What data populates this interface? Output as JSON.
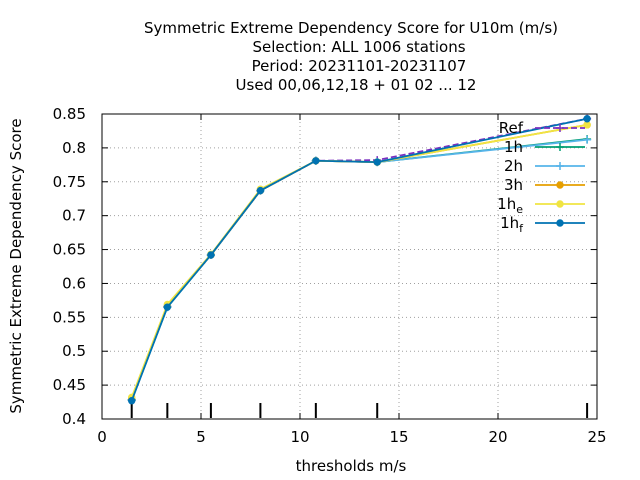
{
  "chart_data": {
    "type": "line",
    "title": [
      "Symmetric Extreme Dependency Score  for U10m (m/s)",
      "Selection: ALL   1006 stations",
      "Period: 20231101-20231107",
      "Used  00,06,12,18 + 01 02 ... 12"
    ],
    "xlabel": "thresholds m/s",
    "ylabel": "Symmetric Extreme Dependency Score",
    "xlim": [
      0,
      25
    ],
    "ylim": [
      0.4,
      0.85
    ],
    "xticks": [
      "0",
      "5",
      "10",
      "15",
      "20",
      "25"
    ],
    "yticks": [
      "0.4",
      "0.45",
      "0.5",
      "0.55",
      "0.6",
      "0.65",
      "0.7",
      "0.75",
      "0.8",
      "0.85"
    ],
    "grid": true,
    "legend_position": "top-right",
    "threshold_marks": [
      1.5,
      3.3,
      5.5,
      8.0,
      10.8,
      13.9,
      24.5
    ],
    "x": [
      1.5,
      3.3,
      5.5,
      8.0,
      10.8,
      13.9,
      24.5
    ],
    "series": [
      {
        "name": "Ref",
        "base": "Ref",
        "sub": "",
        "color": "#7b2fbf",
        "dashed": true,
        "marker": "plus",
        "values": [
          0.428,
          0.566,
          0.642,
          0.737,
          0.781,
          0.782,
          0.843
        ]
      },
      {
        "name": "1h",
        "base": "1h",
        "sub": "",
        "color": "#009e73",
        "dashed": false,
        "marker": "plus",
        "values": [
          0.428,
          0.565,
          0.642,
          0.737,
          0.781,
          0.779,
          0.813
        ]
      },
      {
        "name": "2h",
        "base": "2h",
        "sub": "",
        "color": "#56b4e9",
        "dashed": false,
        "marker": "plus",
        "values": [
          0.428,
          0.565,
          0.642,
          0.737,
          0.781,
          0.779,
          0.812
        ]
      },
      {
        "name": "3h",
        "base": "3h",
        "sub": "",
        "color": "#e69f00",
        "dashed": false,
        "marker": "circle",
        "values": [
          0.43,
          0.566,
          0.642,
          0.737,
          0.781,
          0.779,
          0.834
        ]
      },
      {
        "name": "1he",
        "base": "1h",
        "sub": "e",
        "color": "#f0e442",
        "dashed": false,
        "marker": "circle",
        "values": [
          0.432,
          0.569,
          0.643,
          0.739,
          0.781,
          0.779,
          0.834
        ]
      },
      {
        "name": "1hf",
        "base": "1h",
        "sub": "f",
        "color": "#0072b2",
        "dashed": false,
        "marker": "circle",
        "values": [
          0.427,
          0.565,
          0.642,
          0.737,
          0.781,
          0.779,
          0.843
        ]
      }
    ]
  }
}
